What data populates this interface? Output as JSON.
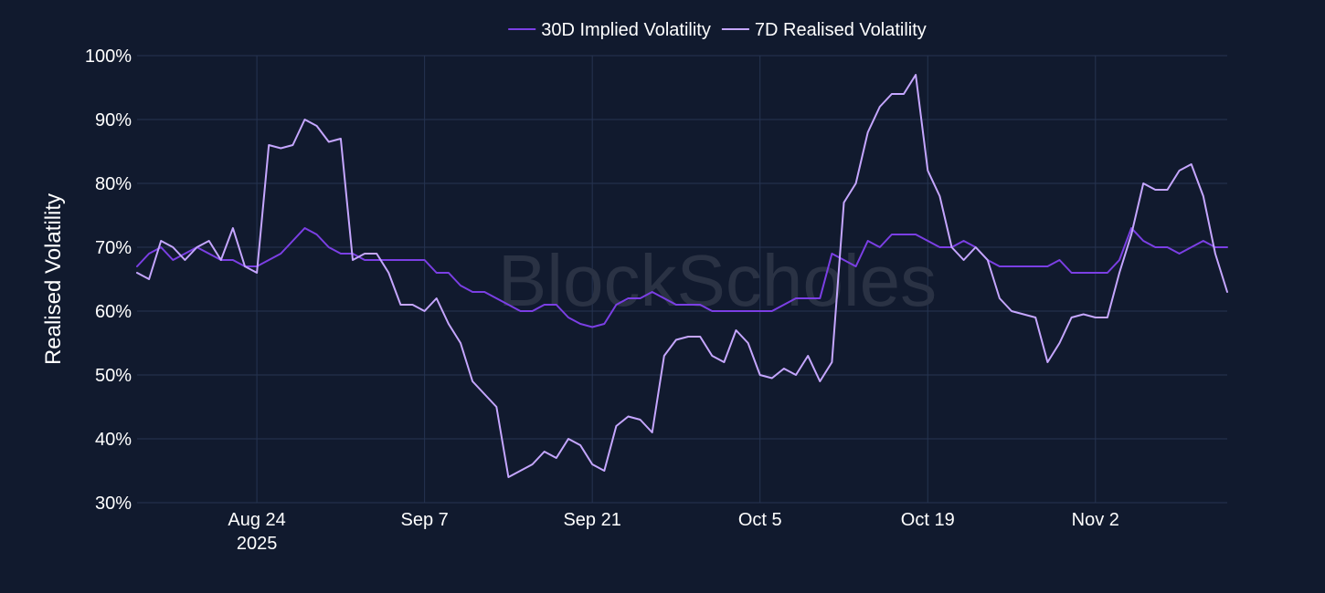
{
  "chart_data": {
    "type": "line",
    "title": "",
    "xlabel": "",
    "ylabel": "Realised Volatility",
    "ylim": [
      30,
      100
    ],
    "y_ticks": [
      30,
      40,
      50,
      60,
      70,
      80,
      90,
      100
    ],
    "y_tick_suffix": "%",
    "y_tick_labels": [
      "30%",
      "40%",
      "50%",
      "60%",
      "70%",
      "80%",
      "90%",
      "100%"
    ],
    "xlim": [
      "2025-08-14",
      "2025-11-13"
    ],
    "x_ticks": [
      {
        "date": "2025-08-24",
        "label": "Aug 24",
        "sublabel": "2025"
      },
      {
        "date": "2025-09-07",
        "label": "Sep 7",
        "sublabel": ""
      },
      {
        "date": "2025-09-21",
        "label": "Sep 21",
        "sublabel": ""
      },
      {
        "date": "2025-10-05",
        "label": "Oct 5",
        "sublabel": ""
      },
      {
        "date": "2025-10-19",
        "label": "Oct 19",
        "sublabel": ""
      },
      {
        "date": "2025-11-02",
        "label": "Nov 2",
        "sublabel": ""
      }
    ],
    "grid": true,
    "legend_position": "top-center",
    "watermark": "BlockScholes",
    "series": [
      {
        "name": "30D Implied Volatility",
        "color": "#7b3fe4",
        "points": [
          [
            "2025-08-14",
            67
          ],
          [
            "2025-08-15",
            69
          ],
          [
            "2025-08-16",
            70
          ],
          [
            "2025-08-17",
            68
          ],
          [
            "2025-08-18",
            69
          ],
          [
            "2025-08-19",
            70
          ],
          [
            "2025-08-20",
            69
          ],
          [
            "2025-08-21",
            68
          ],
          [
            "2025-08-22",
            68
          ],
          [
            "2025-08-23",
            67
          ],
          [
            "2025-08-24",
            67
          ],
          [
            "2025-08-25",
            68
          ],
          [
            "2025-08-26",
            69
          ],
          [
            "2025-08-27",
            71
          ],
          [
            "2025-08-28",
            73
          ],
          [
            "2025-08-29",
            72
          ],
          [
            "2025-08-30",
            70
          ],
          [
            "2025-08-31",
            69
          ],
          [
            "2025-09-01",
            69
          ],
          [
            "2025-09-02",
            68
          ],
          [
            "2025-09-03",
            68
          ],
          [
            "2025-09-04",
            68
          ],
          [
            "2025-09-05",
            68
          ],
          [
            "2025-09-06",
            68
          ],
          [
            "2025-09-07",
            68
          ],
          [
            "2025-09-08",
            66
          ],
          [
            "2025-09-09",
            66
          ],
          [
            "2025-09-10",
            64
          ],
          [
            "2025-09-11",
            63
          ],
          [
            "2025-09-12",
            63
          ],
          [
            "2025-09-13",
            62
          ],
          [
            "2025-09-14",
            61
          ],
          [
            "2025-09-15",
            60
          ],
          [
            "2025-09-16",
            60
          ],
          [
            "2025-09-17",
            61
          ],
          [
            "2025-09-18",
            61
          ],
          [
            "2025-09-19",
            59
          ],
          [
            "2025-09-20",
            58
          ],
          [
            "2025-09-21",
            57.5
          ],
          [
            "2025-09-22",
            58
          ],
          [
            "2025-09-23",
            61
          ],
          [
            "2025-09-24",
            62
          ],
          [
            "2025-09-25",
            62
          ],
          [
            "2025-09-26",
            63
          ],
          [
            "2025-09-27",
            62
          ],
          [
            "2025-09-28",
            61
          ],
          [
            "2025-09-29",
            61
          ],
          [
            "2025-09-30",
            61
          ],
          [
            "2025-10-01",
            60
          ],
          [
            "2025-10-02",
            60
          ],
          [
            "2025-10-03",
            60
          ],
          [
            "2025-10-04",
            60
          ],
          [
            "2025-10-05",
            60
          ],
          [
            "2025-10-06",
            60
          ],
          [
            "2025-10-07",
            61
          ],
          [
            "2025-10-08",
            62
          ],
          [
            "2025-10-09",
            62
          ],
          [
            "2025-10-10",
            62
          ],
          [
            "2025-10-11",
            69
          ],
          [
            "2025-10-12",
            68
          ],
          [
            "2025-10-13",
            67
          ],
          [
            "2025-10-14",
            71
          ],
          [
            "2025-10-15",
            70
          ],
          [
            "2025-10-16",
            72
          ],
          [
            "2025-10-17",
            72
          ],
          [
            "2025-10-18",
            72
          ],
          [
            "2025-10-19",
            71
          ],
          [
            "2025-10-20",
            70
          ],
          [
            "2025-10-21",
            70
          ],
          [
            "2025-10-22",
            71
          ],
          [
            "2025-10-23",
            70
          ],
          [
            "2025-10-24",
            68
          ],
          [
            "2025-10-25",
            67
          ],
          [
            "2025-10-26",
            67
          ],
          [
            "2025-10-27",
            67
          ],
          [
            "2025-10-28",
            67
          ],
          [
            "2025-10-29",
            67
          ],
          [
            "2025-10-30",
            68
          ],
          [
            "2025-10-31",
            66
          ],
          [
            "2025-11-01",
            66
          ],
          [
            "2025-11-02",
            66
          ],
          [
            "2025-11-03",
            66
          ],
          [
            "2025-11-04",
            68
          ],
          [
            "2025-11-05",
            73
          ],
          [
            "2025-11-06",
            71
          ],
          [
            "2025-11-07",
            70
          ],
          [
            "2025-11-08",
            70
          ],
          [
            "2025-11-09",
            69
          ],
          [
            "2025-11-10",
            70
          ],
          [
            "2025-11-11",
            71
          ],
          [
            "2025-11-12",
            70
          ],
          [
            "2025-11-13",
            70
          ]
        ]
      },
      {
        "name": "7D Realised Volatility",
        "color": "#c5a6ff",
        "points": [
          [
            "2025-08-14",
            66
          ],
          [
            "2025-08-15",
            65
          ],
          [
            "2025-08-16",
            71
          ],
          [
            "2025-08-17",
            70
          ],
          [
            "2025-08-18",
            68
          ],
          [
            "2025-08-19",
            70
          ],
          [
            "2025-08-20",
            71
          ],
          [
            "2025-08-21",
            68
          ],
          [
            "2025-08-22",
            73
          ],
          [
            "2025-08-23",
            67
          ],
          [
            "2025-08-24",
            66
          ],
          [
            "2025-08-25",
            86
          ],
          [
            "2025-08-26",
            85.5
          ],
          [
            "2025-08-27",
            86
          ],
          [
            "2025-08-28",
            90
          ],
          [
            "2025-08-29",
            89
          ],
          [
            "2025-08-30",
            86.5
          ],
          [
            "2025-08-31",
            87
          ],
          [
            "2025-09-01",
            68
          ],
          [
            "2025-09-02",
            69
          ],
          [
            "2025-09-03",
            69
          ],
          [
            "2025-09-04",
            66
          ],
          [
            "2025-09-05",
            61
          ],
          [
            "2025-09-06",
            61
          ],
          [
            "2025-09-07",
            60
          ],
          [
            "2025-09-08",
            62
          ],
          [
            "2025-09-09",
            58
          ],
          [
            "2025-09-10",
            55
          ],
          [
            "2025-09-11",
            49
          ],
          [
            "2025-09-12",
            47
          ],
          [
            "2025-09-13",
            45
          ],
          [
            "2025-09-14",
            34
          ],
          [
            "2025-09-15",
            35
          ],
          [
            "2025-09-16",
            36
          ],
          [
            "2025-09-17",
            38
          ],
          [
            "2025-09-18",
            37
          ],
          [
            "2025-09-19",
            40
          ],
          [
            "2025-09-20",
            39
          ],
          [
            "2025-09-21",
            36
          ],
          [
            "2025-09-22",
            35
          ],
          [
            "2025-09-23",
            42
          ],
          [
            "2025-09-24",
            43.5
          ],
          [
            "2025-09-25",
            43
          ],
          [
            "2025-09-26",
            41
          ],
          [
            "2025-09-27",
            53
          ],
          [
            "2025-09-28",
            55.5
          ],
          [
            "2025-09-29",
            56
          ],
          [
            "2025-09-30",
            56
          ],
          [
            "2025-10-01",
            53
          ],
          [
            "2025-10-02",
            52
          ],
          [
            "2025-10-03",
            57
          ],
          [
            "2025-10-04",
            55
          ],
          [
            "2025-10-05",
            50
          ],
          [
            "2025-10-06",
            49.5
          ],
          [
            "2025-10-07",
            51
          ],
          [
            "2025-10-08",
            50
          ],
          [
            "2025-10-09",
            53
          ],
          [
            "2025-10-10",
            49
          ],
          [
            "2025-10-11",
            52
          ],
          [
            "2025-10-12",
            77
          ],
          [
            "2025-10-13",
            80
          ],
          [
            "2025-10-14",
            88
          ],
          [
            "2025-10-15",
            92
          ],
          [
            "2025-10-16",
            94
          ],
          [
            "2025-10-17",
            94
          ],
          [
            "2025-10-18",
            97
          ],
          [
            "2025-10-19",
            82
          ],
          [
            "2025-10-20",
            78
          ],
          [
            "2025-10-21",
            70
          ],
          [
            "2025-10-22",
            68
          ],
          [
            "2025-10-23",
            70
          ],
          [
            "2025-10-24",
            68
          ],
          [
            "2025-10-25",
            62
          ],
          [
            "2025-10-26",
            60
          ],
          [
            "2025-10-27",
            59.5
          ],
          [
            "2025-10-28",
            59
          ],
          [
            "2025-10-29",
            52
          ],
          [
            "2025-10-30",
            55
          ],
          [
            "2025-10-31",
            59
          ],
          [
            "2025-11-01",
            59.5
          ],
          [
            "2025-11-02",
            59
          ],
          [
            "2025-11-03",
            59
          ],
          [
            "2025-11-04",
            66
          ],
          [
            "2025-11-05",
            72
          ],
          [
            "2025-11-06",
            80
          ],
          [
            "2025-11-07",
            79
          ],
          [
            "2025-11-08",
            79
          ],
          [
            "2025-11-09",
            82
          ],
          [
            "2025-11-10",
            83
          ],
          [
            "2025-11-11",
            78
          ],
          [
            "2025-11-12",
            69
          ],
          [
            "2025-11-13",
            63
          ]
        ]
      }
    ]
  }
}
